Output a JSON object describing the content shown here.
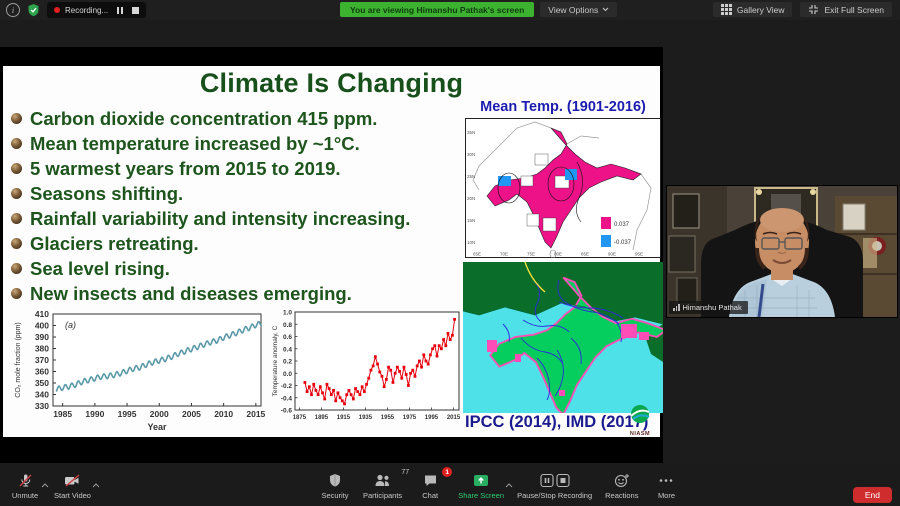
{
  "meeting": {
    "top_bar": {
      "recording_label": "Recording...",
      "banner": "You are viewing Himanshu Pathak's screen",
      "view_options_label": "View Options",
      "gallery_view_label": "Gallery View",
      "exit_full_screen_label": "Exit Full Screen"
    },
    "video": {
      "participant_name": "Himanshu Pathak"
    },
    "bottom_bar": {
      "unmute": "Unmute",
      "start_video": "Start Video",
      "security": "Security",
      "participants": "Participants",
      "participants_count": "77",
      "chat": "Chat",
      "chat_badge": "1",
      "share_screen": "Share Screen",
      "pause_stop": "Pause/Stop Recording",
      "reactions": "Reactions",
      "more": "More",
      "end": "End"
    }
  },
  "slide": {
    "title": "Climate Is Changing",
    "bullets": [
      "Carbon dioxide concentration 415 ppm.",
      "Mean temperature increased by ~1°C.",
      "5 warmest years from 2015 to 2019.",
      "Seasons shifting.",
      "Rainfall variability and intensity increasing.",
      "Glaciers retreating.",
      "Sea level rising.",
      "New insects and diseases emerging."
    ],
    "mean_temp_map": {
      "title": "Mean Temp. (1901-2016)",
      "legend": [
        {
          "color": "#ee1289",
          "label": "0.037"
        },
        {
          "color": "#2196f3",
          "label": "-0.037"
        }
      ],
      "lat_ticks": [
        "35N",
        "30N",
        "25N",
        "20N",
        "15N",
        "10N"
      ],
      "lon_ticks": [
        "65E",
        "70E",
        "75E",
        "80E",
        "85E",
        "90E",
        "95E"
      ]
    },
    "citation": "IPCC (2014), IMD (2017)",
    "logo_text": "NIASM"
  },
  "chart_data": [
    {
      "type": "line",
      "annotation": "(a)",
      "xlabel": "Year",
      "ylabel": "CO₂ mole fraction (ppm)",
      "xlim": [
        1983.5,
        2015.8
      ],
      "ylim": [
        330,
        410
      ],
      "x_ticks": [
        1985,
        1990,
        1995,
        2000,
        2005,
        2010,
        2015
      ],
      "y_ticks": [
        330,
        340,
        350,
        360,
        370,
        380,
        390,
        400,
        410
      ],
      "seasonal_amplitude": 2.2,
      "line_color": "#5b98a8",
      "x": [
        1984,
        1985,
        1986,
        1987,
        1988,
        1989,
        1990,
        1991,
        1992,
        1993,
        1994,
        1995,
        1996,
        1997,
        1998,
        1999,
        2000,
        2001,
        2002,
        2003,
        2004,
        2005,
        2006,
        2007,
        2008,
        2009,
        2010,
        2011,
        2012,
        2013,
        2014,
        2015
      ],
      "values": [
        344.5,
        346,
        347,
        348.5,
        351,
        352.5,
        354,
        355.5,
        356,
        357,
        358.5,
        360.5,
        362.5,
        363.5,
        366,
        368,
        369.5,
        371,
        373,
        375.5,
        377.5,
        379.5,
        381.5,
        383.5,
        385.5,
        387,
        389.5,
        391.5,
        393.5,
        396,
        398,
        400.5
      ]
    },
    {
      "type": "line-scatter",
      "ylabel": "Temperature anomaly, C",
      "xlim": [
        1871,
        2020
      ],
      "ylim": [
        -0.6,
        1.0
      ],
      "x_ticks": [
        1875,
        1895,
        1915,
        1935,
        1955,
        1975,
        1995,
        2015
      ],
      "y_ticks": [
        1.0,
        0.8,
        0.6,
        0.4,
        0.2,
        0.0,
        -0.2,
        -0.4,
        -0.6
      ],
      "line_color": "#e8000d",
      "x": [
        1880,
        1882,
        1884,
        1886,
        1888,
        1890,
        1892,
        1894,
        1896,
        1898,
        1900,
        1902,
        1904,
        1906,
        1908,
        1910,
        1912,
        1914,
        1916,
        1918,
        1920,
        1922,
        1924,
        1926,
        1928,
        1930,
        1932,
        1934,
        1936,
        1938,
        1940,
        1942,
        1944,
        1946,
        1948,
        1950,
        1952,
        1954,
        1956,
        1958,
        1960,
        1962,
        1964,
        1966,
        1968,
        1970,
        1972,
        1974,
        1976,
        1978,
        1980,
        1982,
        1984,
        1986,
        1988,
        1990,
        1992,
        1994,
        1996,
        1998,
        2000,
        2002,
        2004,
        2006,
        2008,
        2010,
        2012,
        2014,
        2016
      ],
      "values": [
        -0.15,
        -0.3,
        -0.22,
        -0.35,
        -0.18,
        -0.28,
        -0.35,
        -0.22,
        -0.32,
        -0.42,
        -0.18,
        -0.25,
        -0.35,
        -0.28,
        -0.45,
        -0.32,
        -0.4,
        -0.45,
        -0.5,
        -0.35,
        -0.28,
        -0.35,
        -0.42,
        -0.25,
        -0.3,
        -0.35,
        -0.22,
        -0.3,
        -0.18,
        -0.08,
        0.05,
        0.12,
        0.27,
        0.15,
        0.02,
        -0.05,
        -0.22,
        -0.1,
        0.1,
        0.05,
        -0.15,
        0.0,
        0.1,
        0.03,
        -0.08,
        0.1,
        -0.02,
        -0.2,
        0.0,
        0.05,
        -0.05,
        0.12,
        0.2,
        0.1,
        0.3,
        0.2,
        0.15,
        0.3,
        0.4,
        0.45,
        0.28,
        0.45,
        0.4,
        0.55,
        0.45,
        0.65,
        0.55,
        0.62,
        0.88
      ]
    }
  ],
  "colors": {
    "banner_green": "#3db130",
    "title_green": "#17501a",
    "bullet_green": "#1d551d",
    "map_title_blue": "#1c1cb0",
    "map_pink": "#ee1289",
    "map_blue": "#2196f3",
    "river_land_green": "#05cе5e",
    "ocean_cyan": "#4fe1e8",
    "citation_navy": "#1b1b8f",
    "share_green": "#2ecc71",
    "end_red": "#cf2d2d",
    "chat_badge_red": "#e02020"
  }
}
